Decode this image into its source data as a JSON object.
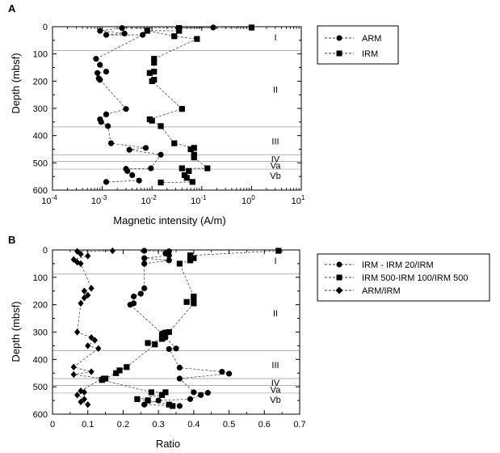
{
  "chart_data": [
    {
      "type": "scatter",
      "panel_label": "A",
      "xlabel": "Magnetic intensity (A/m)",
      "ylabel": "Depth (mbsf)",
      "xscale": "log",
      "xlim": [
        0.0001,
        10
      ],
      "ylim": [
        600,
        0
      ],
      "x_ticks": [
        {
          "value": 0.0001,
          "base": "10",
          "exp": "-4"
        },
        {
          "value": 0.001,
          "base": "10",
          "exp": "-3"
        },
        {
          "value": 0.01,
          "base": "10",
          "exp": "-2"
        },
        {
          "value": 0.1,
          "base": "10",
          "exp": "-1"
        },
        {
          "value": 1,
          "base": "10",
          "exp": "0"
        },
        {
          "value": 10,
          "base": "10",
          "exp": "1"
        }
      ],
      "y_ticks": [
        "0",
        "100",
        "200",
        "300",
        "400",
        "500",
        "600"
      ],
      "unit_boundaries": [
        88,
        368,
        470,
        495,
        523
      ],
      "units": [
        {
          "label": "I",
          "depth": 38
        },
        {
          "label": "II",
          "depth": 230
        },
        {
          "label": "III",
          "depth": 420
        },
        {
          "label": "IV",
          "depth": 485
        },
        {
          "label": "Va",
          "depth": 510
        },
        {
          "label": "Vb",
          "depth": 547
        }
      ],
      "legend": {
        "position": "right",
        "entries": [
          "ARM",
          "IRM"
        ]
      },
      "series": [
        {
          "name": "ARM",
          "marker": "circle",
          "points": [
            {
              "x": 0.17,
              "y": 3
            },
            {
              "x": 0.0025,
              "y": 5
            },
            {
              "x": 0.0009,
              "y": 15
            },
            {
              "x": 0.0028,
              "y": 25
            },
            {
              "x": 0.0012,
              "y": 30
            },
            {
              "x": 0.0065,
              "y": 30
            },
            {
              "x": 0.00075,
              "y": 118
            },
            {
              "x": 0.0009,
              "y": 140
            },
            {
              "x": 0.0012,
              "y": 165
            },
            {
              "x": 0.0008,
              "y": 170
            },
            {
              "x": 0.00085,
              "y": 190
            },
            {
              "x": 0.0009,
              "y": 195
            },
            {
              "x": 0.003,
              "y": 302
            },
            {
              "x": 0.0012,
              "y": 322
            },
            {
              "x": 0.0009,
              "y": 340
            },
            {
              "x": 0.00095,
              "y": 350
            },
            {
              "x": 0.0013,
              "y": 365
            },
            {
              "x": 0.0015,
              "y": 428
            },
            {
              "x": 0.0075,
              "y": 445
            },
            {
              "x": 0.0035,
              "y": 452
            },
            {
              "x": 0.015,
              "y": 470
            },
            {
              "x": 0.0095,
              "y": 520
            },
            {
              "x": 0.003,
              "y": 522
            },
            {
              "x": 0.0032,
              "y": 530
            },
            {
              "x": 0.004,
              "y": 545
            },
            {
              "x": 0.0055,
              "y": 565
            },
            {
              "x": 0.0012,
              "y": 570
            }
          ]
        },
        {
          "name": "IRM",
          "marker": "square",
          "points": [
            {
              "x": 1.0,
              "y": 3
            },
            {
              "x": 0.035,
              "y": 5
            },
            {
              "x": 0.035,
              "y": 15
            },
            {
              "x": 0.008,
              "y": 15
            },
            {
              "x": 0.028,
              "y": 35
            },
            {
              "x": 0.08,
              "y": 45
            },
            {
              "x": 0.011,
              "y": 118
            },
            {
              "x": 0.011,
              "y": 132
            },
            {
              "x": 0.011,
              "y": 165
            },
            {
              "x": 0.009,
              "y": 170
            },
            {
              "x": 0.011,
              "y": 195
            },
            {
              "x": 0.01,
              "y": 200
            },
            {
              "x": 0.04,
              "y": 302
            },
            {
              "x": 0.009,
              "y": 340
            },
            {
              "x": 0.01,
              "y": 345
            },
            {
              "x": 0.015,
              "y": 365
            },
            {
              "x": 0.028,
              "y": 428
            },
            {
              "x": 0.07,
              "y": 445
            },
            {
              "x": 0.06,
              "y": 450
            },
            {
              "x": 0.07,
              "y": 470
            },
            {
              "x": 0.07,
              "y": 480
            },
            {
              "x": 0.13,
              "y": 520
            },
            {
              "x": 0.04,
              "y": 520
            },
            {
              "x": 0.055,
              "y": 530
            },
            {
              "x": 0.045,
              "y": 545
            },
            {
              "x": 0.05,
              "y": 555
            },
            {
              "x": 0.065,
              "y": 570
            },
            {
              "x": 0.015,
              "y": 572
            }
          ]
        }
      ]
    },
    {
      "type": "scatter",
      "panel_label": "B",
      "xlabel": "Ratio",
      "ylabel": "Depth (mbsf)",
      "xscale": "linear",
      "xlim": [
        0,
        0.7
      ],
      "ylim": [
        600,
        0
      ],
      "x_ticks": [
        "0",
        "0.1",
        "0.2",
        "0.3",
        "0.4",
        "0.5",
        "0.6",
        "0.7"
      ],
      "y_ticks": [
        "0",
        "100",
        "200",
        "300",
        "400",
        "500",
        "600"
      ],
      "unit_boundaries": [
        88,
        368,
        470,
        495,
        523
      ],
      "units": [
        {
          "label": "I",
          "depth": 38
        },
        {
          "label": "II",
          "depth": 230
        },
        {
          "label": "III",
          "depth": 420
        },
        {
          "label": "IV",
          "depth": 485
        },
        {
          "label": "Va",
          "depth": 510
        },
        {
          "label": "Vb",
          "depth": 547
        }
      ],
      "legend": {
        "position": "right",
        "entries": [
          "IRM - IRM 20/IRM",
          "IRM 500-IRM 100/IRM 500",
          "ARM/IRM"
        ]
      },
      "series": [
        {
          "name": "IRM - IRM 20/IRM",
          "marker": "circle",
          "points": [
            {
              "x": 0.26,
              "y": 3
            },
            {
              "x": 0.33,
              "y": 5
            },
            {
              "x": 0.32,
              "y": 12
            },
            {
              "x": 0.33,
              "y": 20
            },
            {
              "x": 0.26,
              "y": 30
            },
            {
              "x": 0.33,
              "y": 38
            },
            {
              "x": 0.26,
              "y": 50
            },
            {
              "x": 0.26,
              "y": 140
            },
            {
              "x": 0.25,
              "y": 160
            },
            {
              "x": 0.23,
              "y": 170
            },
            {
              "x": 0.23,
              "y": 195
            },
            {
              "x": 0.22,
              "y": 200
            },
            {
              "x": 0.31,
              "y": 305
            },
            {
              "x": 0.32,
              "y": 320
            },
            {
              "x": 0.35,
              "y": 360
            },
            {
              "x": 0.33,
              "y": 362
            },
            {
              "x": 0.36,
              "y": 430
            },
            {
              "x": 0.48,
              "y": 445
            },
            {
              "x": 0.5,
              "y": 452
            },
            {
              "x": 0.36,
              "y": 470
            },
            {
              "x": 0.4,
              "y": 520
            },
            {
              "x": 0.44,
              "y": 522
            },
            {
              "x": 0.42,
              "y": 530
            },
            {
              "x": 0.39,
              "y": 545
            },
            {
              "x": 0.3,
              "y": 550
            },
            {
              "x": 0.26,
              "y": 565
            },
            {
              "x": 0.36,
              "y": 570
            }
          ]
        },
        {
          "name": "IRM 500-IRM 100/IRM 500",
          "marker": "square",
          "points": [
            {
              "x": 0.64,
              "y": 3
            },
            {
              "x": 0.39,
              "y": 20
            },
            {
              "x": 0.4,
              "y": 30
            },
            {
              "x": 0.39,
              "y": 38
            },
            {
              "x": 0.36,
              "y": 50
            },
            {
              "x": 0.4,
              "y": 170
            },
            {
              "x": 0.4,
              "y": 175
            },
            {
              "x": 0.38,
              "y": 190
            },
            {
              "x": 0.4,
              "y": 195
            },
            {
              "x": 0.33,
              "y": 300
            },
            {
              "x": 0.32,
              "y": 302
            },
            {
              "x": 0.31,
              "y": 318
            },
            {
              "x": 0.31,
              "y": 325
            },
            {
              "x": 0.27,
              "y": 340
            },
            {
              "x": 0.29,
              "y": 345
            },
            {
              "x": 0.21,
              "y": 428
            },
            {
              "x": 0.19,
              "y": 440
            },
            {
              "x": 0.18,
              "y": 450
            },
            {
              "x": 0.15,
              "y": 470
            },
            {
              "x": 0.14,
              "y": 475
            },
            {
              "x": 0.28,
              "y": 520
            },
            {
              "x": 0.32,
              "y": 520
            },
            {
              "x": 0.31,
              "y": 530
            },
            {
              "x": 0.24,
              "y": 545
            },
            {
              "x": 0.27,
              "y": 550
            },
            {
              "x": 0.33,
              "y": 565
            },
            {
              "x": 0.34,
              "y": 570
            }
          ]
        },
        {
          "name": "ARM/IRM",
          "marker": "diamond",
          "points": [
            {
              "x": 0.17,
              "y": 3
            },
            {
              "x": 0.07,
              "y": 5
            },
            {
              "x": 0.08,
              "y": 15
            },
            {
              "x": 0.1,
              "y": 22
            },
            {
              "x": 0.06,
              "y": 35
            },
            {
              "x": 0.07,
              "y": 45
            },
            {
              "x": 0.08,
              "y": 50
            },
            {
              "x": 0.11,
              "y": 140
            },
            {
              "x": 0.09,
              "y": 150
            },
            {
              "x": 0.1,
              "y": 165
            },
            {
              "x": 0.09,
              "y": 175
            },
            {
              "x": 0.08,
              "y": 195
            },
            {
              "x": 0.07,
              "y": 300
            },
            {
              "x": 0.11,
              "y": 320
            },
            {
              "x": 0.12,
              "y": 330
            },
            {
              "x": 0.1,
              "y": 350
            },
            {
              "x": 0.13,
              "y": 360
            },
            {
              "x": 0.06,
              "y": 428
            },
            {
              "x": 0.11,
              "y": 445
            },
            {
              "x": 0.06,
              "y": 455
            },
            {
              "x": 0.14,
              "y": 470
            },
            {
              "x": 0.08,
              "y": 515
            },
            {
              "x": 0.09,
              "y": 520
            },
            {
              "x": 0.07,
              "y": 530
            },
            {
              "x": 0.09,
              "y": 545
            },
            {
              "x": 0.08,
              "y": 555
            },
            {
              "x": 0.1,
              "y": 565
            }
          ]
        }
      ]
    }
  ]
}
